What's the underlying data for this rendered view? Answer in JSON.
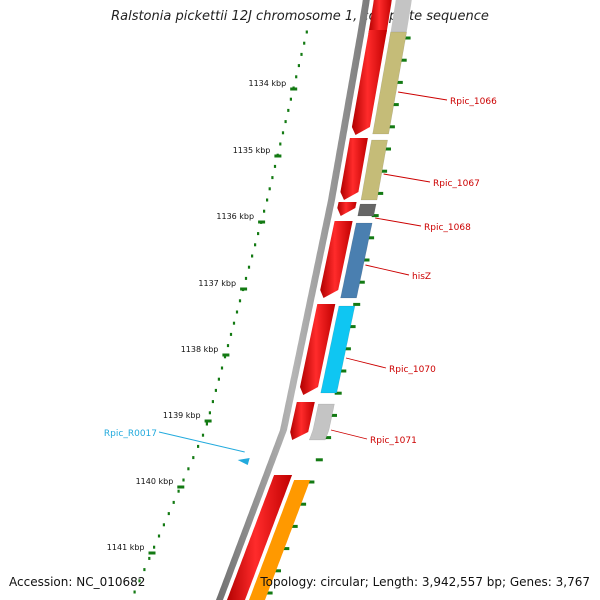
{
  "title": "Ralstonia pickettii 12J chromosome 1, complete sequence",
  "footer": {
    "accession": "Accession: NC_010682",
    "summary": "Topology: circular; Length: 3,942,557 bp; Genes: 3,767"
  },
  "colors": {
    "backbone": "#8a8a8a",
    "strand_forward": "#ee1111",
    "tick": "#137a13",
    "label_red": "#cc0000",
    "label_cyan": "#22aadd"
  },
  "ticks": [
    {
      "label": "1134 kbp"
    },
    {
      "label": "1135 kbp"
    },
    {
      "label": "1136 kbp"
    },
    {
      "label": "1137 kbp"
    },
    {
      "label": "1138 kbp"
    },
    {
      "label": "1139 kbp"
    },
    {
      "label": "1140 kbp"
    },
    {
      "label": "1141 kbp"
    }
  ],
  "genes": [
    {
      "label": "Rpic_1066",
      "color": "#c5bc78"
    },
    {
      "label": "Rpic_1067",
      "color": "#c5bc78"
    },
    {
      "label": "Rpic_1068",
      "color": "#666666"
    },
    {
      "label": "hisZ",
      "color": "#4a7fb0"
    },
    {
      "label": "Rpic_1070",
      "color": "#0fc6f2"
    },
    {
      "label": "Rpic_1071",
      "color": "#c4c4c4"
    },
    {
      "label": "Rpic_R0017",
      "color": "#22aadd"
    }
  ]
}
